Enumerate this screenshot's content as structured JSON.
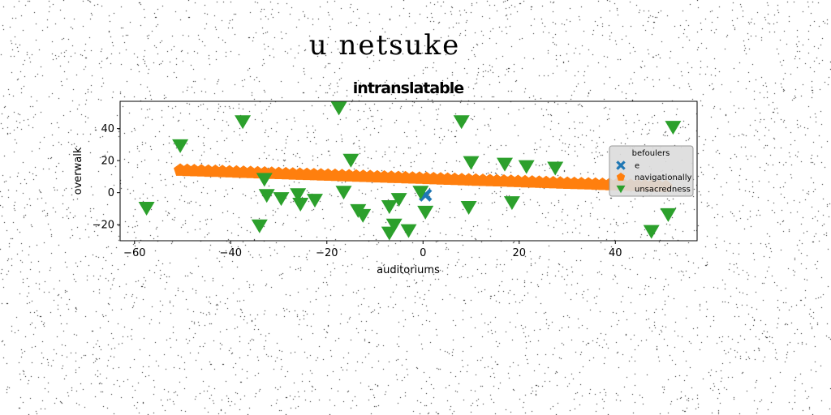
{
  "suptitle": "u netsuke",
  "chart_data": {
    "type": "scatter",
    "title": "intranslatable",
    "xlabel": "auditoriums",
    "ylabel": "overwalk",
    "xlim": [
      -63,
      57
    ],
    "ylim": [
      -30,
      57
    ],
    "xticks": [
      -60,
      -40,
      -20,
      0,
      20,
      40
    ],
    "yticks": [
      -20,
      0,
      20,
      40
    ],
    "grid": false,
    "legend": {
      "title": "befoulers",
      "placement": "center-right"
    },
    "series": [
      {
        "name": "e",
        "marker": "X",
        "color": "#1f77b4",
        "points": [
          [
            0.5,
            -1.5
          ]
        ]
      },
      {
        "name": "navigationally",
        "marker": "pentagon",
        "color": "#ff7f0e",
        "line": {
          "x_start": -50.5,
          "x_end": 50.5,
          "y_start": 14.0,
          "y_end": 3.8,
          "count": 70
        }
      },
      {
        "name": "unsacredness",
        "marker": "triangle-down",
        "color": "#2ca02c",
        "points": [
          [
            -57.5,
            -9.5
          ],
          [
            -50.5,
            29.5
          ],
          [
            -37.5,
            44.5
          ],
          [
            -34,
            -20.5
          ],
          [
            -33,
            8.5
          ],
          [
            -32.5,
            -1.5
          ],
          [
            -29.5,
            -3.5
          ],
          [
            -26,
            -1
          ],
          [
            -25.5,
            -7
          ],
          [
            -22.5,
            -4.5
          ],
          [
            -17.5,
            53
          ],
          [
            -16.5,
            0.5
          ],
          [
            -15,
            20.5
          ],
          [
            -13.5,
            -11
          ],
          [
            -12.5,
            -14
          ],
          [
            -7,
            -25
          ],
          [
            -7,
            -8.5
          ],
          [
            -6,
            -20
          ],
          [
            -5,
            -4
          ],
          [
            -3,
            -23.5
          ],
          [
            -0.5,
            0.5
          ],
          [
            0.5,
            -12
          ],
          [
            8,
            44.5
          ],
          [
            9.5,
            -9
          ],
          [
            10,
            19
          ],
          [
            17,
            18
          ],
          [
            18.5,
            -6
          ],
          [
            21.5,
            16.5
          ],
          [
            27.5,
            15.5
          ],
          [
            47.5,
            -24
          ],
          [
            51,
            -13.5
          ],
          [
            52,
            41
          ]
        ]
      }
    ]
  }
}
